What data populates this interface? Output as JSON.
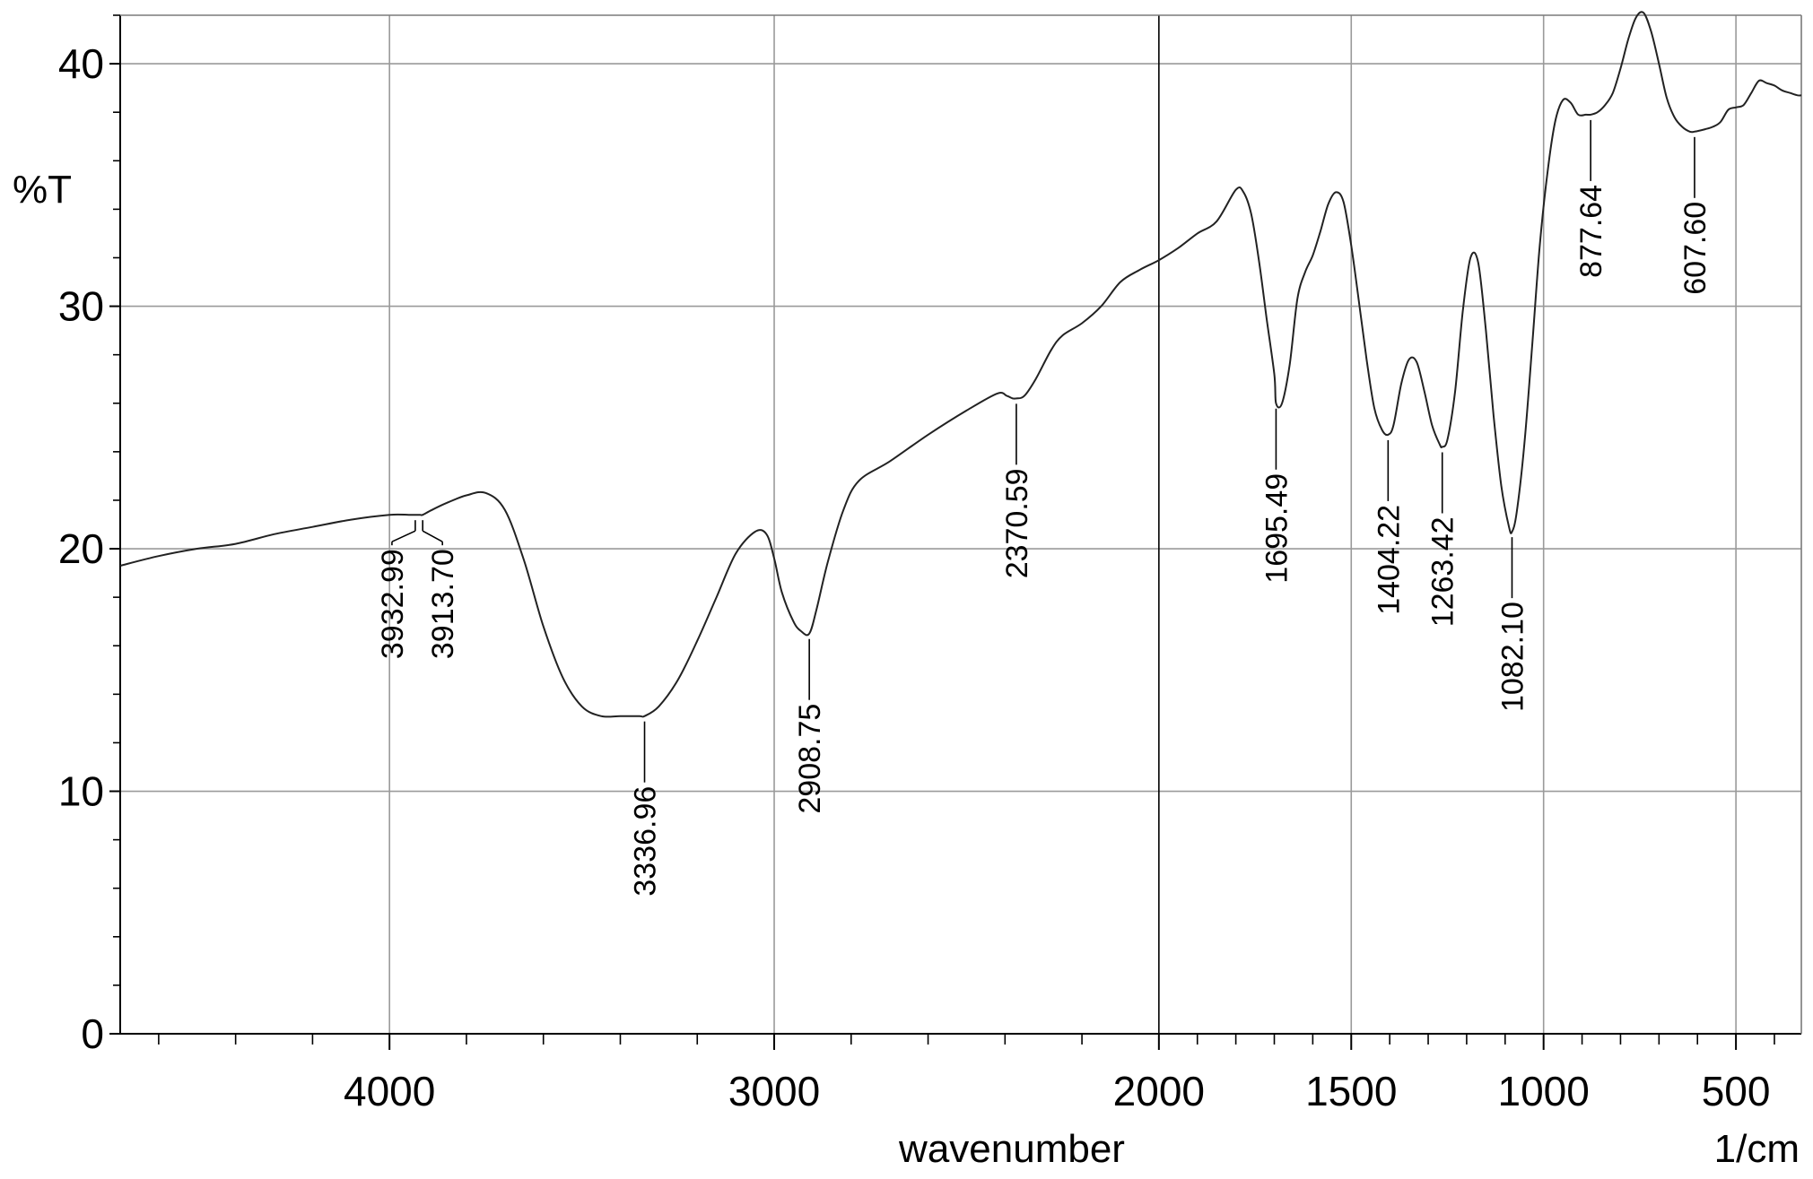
{
  "chart_data": {
    "type": "line",
    "title": "",
    "xlabel": "wavenumber",
    "xunit": "1/cm",
    "ylabel": "%T",
    "xlim": [
      4700,
      330
    ],
    "ylim": [
      0,
      42
    ],
    "x_reversed": true,
    "grid": true,
    "x_ticks": [
      {
        "value": 4000,
        "label": "4000"
      },
      {
        "value": 3000,
        "label": "3000"
      },
      {
        "value": 2000,
        "label": "2000"
      },
      {
        "value": 1500,
        "label": "1500"
      },
      {
        "value": 1000,
        "label": "1000"
      },
      {
        "value": 500,
        "label": "500"
      }
    ],
    "y_ticks": [
      {
        "value": 0,
        "label": "0"
      },
      {
        "value": 10,
        "label": "10"
      },
      {
        "value": 20,
        "label": "20"
      },
      {
        "value": 30,
        "label": "30"
      },
      {
        "value": 40,
        "label": "40"
      }
    ],
    "series": [
      {
        "name": "",
        "x": [
          4700,
          4600,
          4500,
          4400,
          4300,
          4200,
          4100,
          4000,
          3950,
          3932.99,
          3920,
          3913.7,
          3890,
          3850,
          3800,
          3750,
          3700,
          3650,
          3600,
          3550,
          3500,
          3450,
          3400,
          3350,
          3336.96,
          3300,
          3250,
          3200,
          3150,
          3100,
          3050,
          3020,
          3000,
          2980,
          2950,
          2930,
          2908.75,
          2890,
          2860,
          2820,
          2780,
          2700,
          2600,
          2500,
          2420,
          2395,
          2380,
          2370.59,
          2350,
          2320,
          2280,
          2250,
          2200,
          2150,
          2100,
          2050,
          2000,
          1950,
          1900,
          1850,
          1800,
          1780,
          1760,
          1740,
          1720,
          1700,
          1695.49,
          1680,
          1660,
          1640,
          1620,
          1600,
          1580,
          1560,
          1540,
          1520,
          1500,
          1480,
          1460,
          1440,
          1420,
          1404.22,
          1390,
          1370,
          1350,
          1330,
          1310,
          1290,
          1270,
          1263.42,
          1250,
          1230,
          1210,
          1190,
          1170,
          1150,
          1130,
          1110,
          1090,
          1082.1,
          1070,
          1050,
          1030,
          1010,
          990,
          970,
          950,
          930,
          910,
          890,
          877.64,
          860,
          840,
          820,
          800,
          780,
          760,
          740,
          720,
          700,
          680,
          660,
          640,
          620,
          607.6,
          580,
          560,
          540,
          520,
          500,
          480,
          460,
          440,
          420,
          400,
          380,
          360,
          340,
          330
        ],
        "y": [
          19.3,
          19.7,
          20.0,
          20.2,
          20.6,
          20.9,
          21.2,
          21.4,
          21.4,
          21.4,
          21.4,
          21.4,
          21.6,
          21.9,
          22.2,
          22.3,
          21.6,
          19.5,
          16.8,
          14.7,
          13.5,
          13.1,
          13.1,
          13.1,
          13.1,
          13.5,
          14.6,
          16.2,
          18.0,
          19.8,
          20.7,
          20.6,
          19.6,
          18.2,
          17.0,
          16.6,
          16.5,
          17.5,
          19.5,
          21.6,
          22.8,
          23.6,
          24.7,
          25.7,
          26.4,
          26.3,
          26.2,
          26.2,
          26.3,
          27.0,
          28.2,
          28.8,
          29.3,
          30.0,
          31.0,
          31.5,
          31.9,
          32.4,
          33.0,
          33.5,
          34.8,
          34.7,
          33.8,
          31.9,
          29.5,
          27.2,
          26.0,
          26.0,
          27.6,
          30.3,
          31.4,
          32.1,
          33.1,
          34.2,
          34.7,
          34.3,
          32.5,
          30.2,
          27.8,
          25.8,
          24.9,
          24.7,
          25.1,
          26.8,
          27.8,
          27.7,
          26.5,
          25.1,
          24.3,
          24.2,
          24.5,
          26.5,
          29.8,
          32.0,
          31.8,
          29.0,
          25.5,
          22.6,
          20.9,
          20.7,
          21.5,
          24.3,
          28.3,
          32.5,
          35.5,
          37.6,
          38.5,
          38.4,
          37.9,
          37.9,
          37.9,
          38.0,
          38.3,
          38.8,
          39.8,
          41.0,
          41.9,
          42.1,
          41.3,
          40.0,
          38.6,
          37.8,
          37.4,
          37.2,
          37.2,
          37.3,
          37.4,
          37.6,
          38.1,
          38.2,
          38.3,
          38.8,
          39.3,
          39.2,
          39.1,
          38.9,
          38.8,
          38.7,
          38.7
        ]
      }
    ],
    "peak_labels": [
      {
        "x": 3932.99,
        "y": 21.4,
        "label": "3932.99"
      },
      {
        "x": 3913.7,
        "y": 21.4,
        "label": "3913.70"
      },
      {
        "x": 3336.96,
        "y": 13.1,
        "label": "3336.96"
      },
      {
        "x": 2908.75,
        "y": 16.5,
        "label": "2908.75"
      },
      {
        "x": 2370.59,
        "y": 26.2,
        "label": "2370.59"
      },
      {
        "x": 1695.49,
        "y": 26.0,
        "label": "1695.49"
      },
      {
        "x": 1404.22,
        "y": 24.7,
        "label": "1404.22"
      },
      {
        "x": 1263.42,
        "y": 24.2,
        "label": "1263.42"
      },
      {
        "x": 1082.1,
        "y": 20.7,
        "label": "1082.10"
      },
      {
        "x": 877.64,
        "y": 37.9,
        "label": "877.64"
      },
      {
        "x": 607.6,
        "y": 37.2,
        "label": "607.60"
      }
    ]
  }
}
